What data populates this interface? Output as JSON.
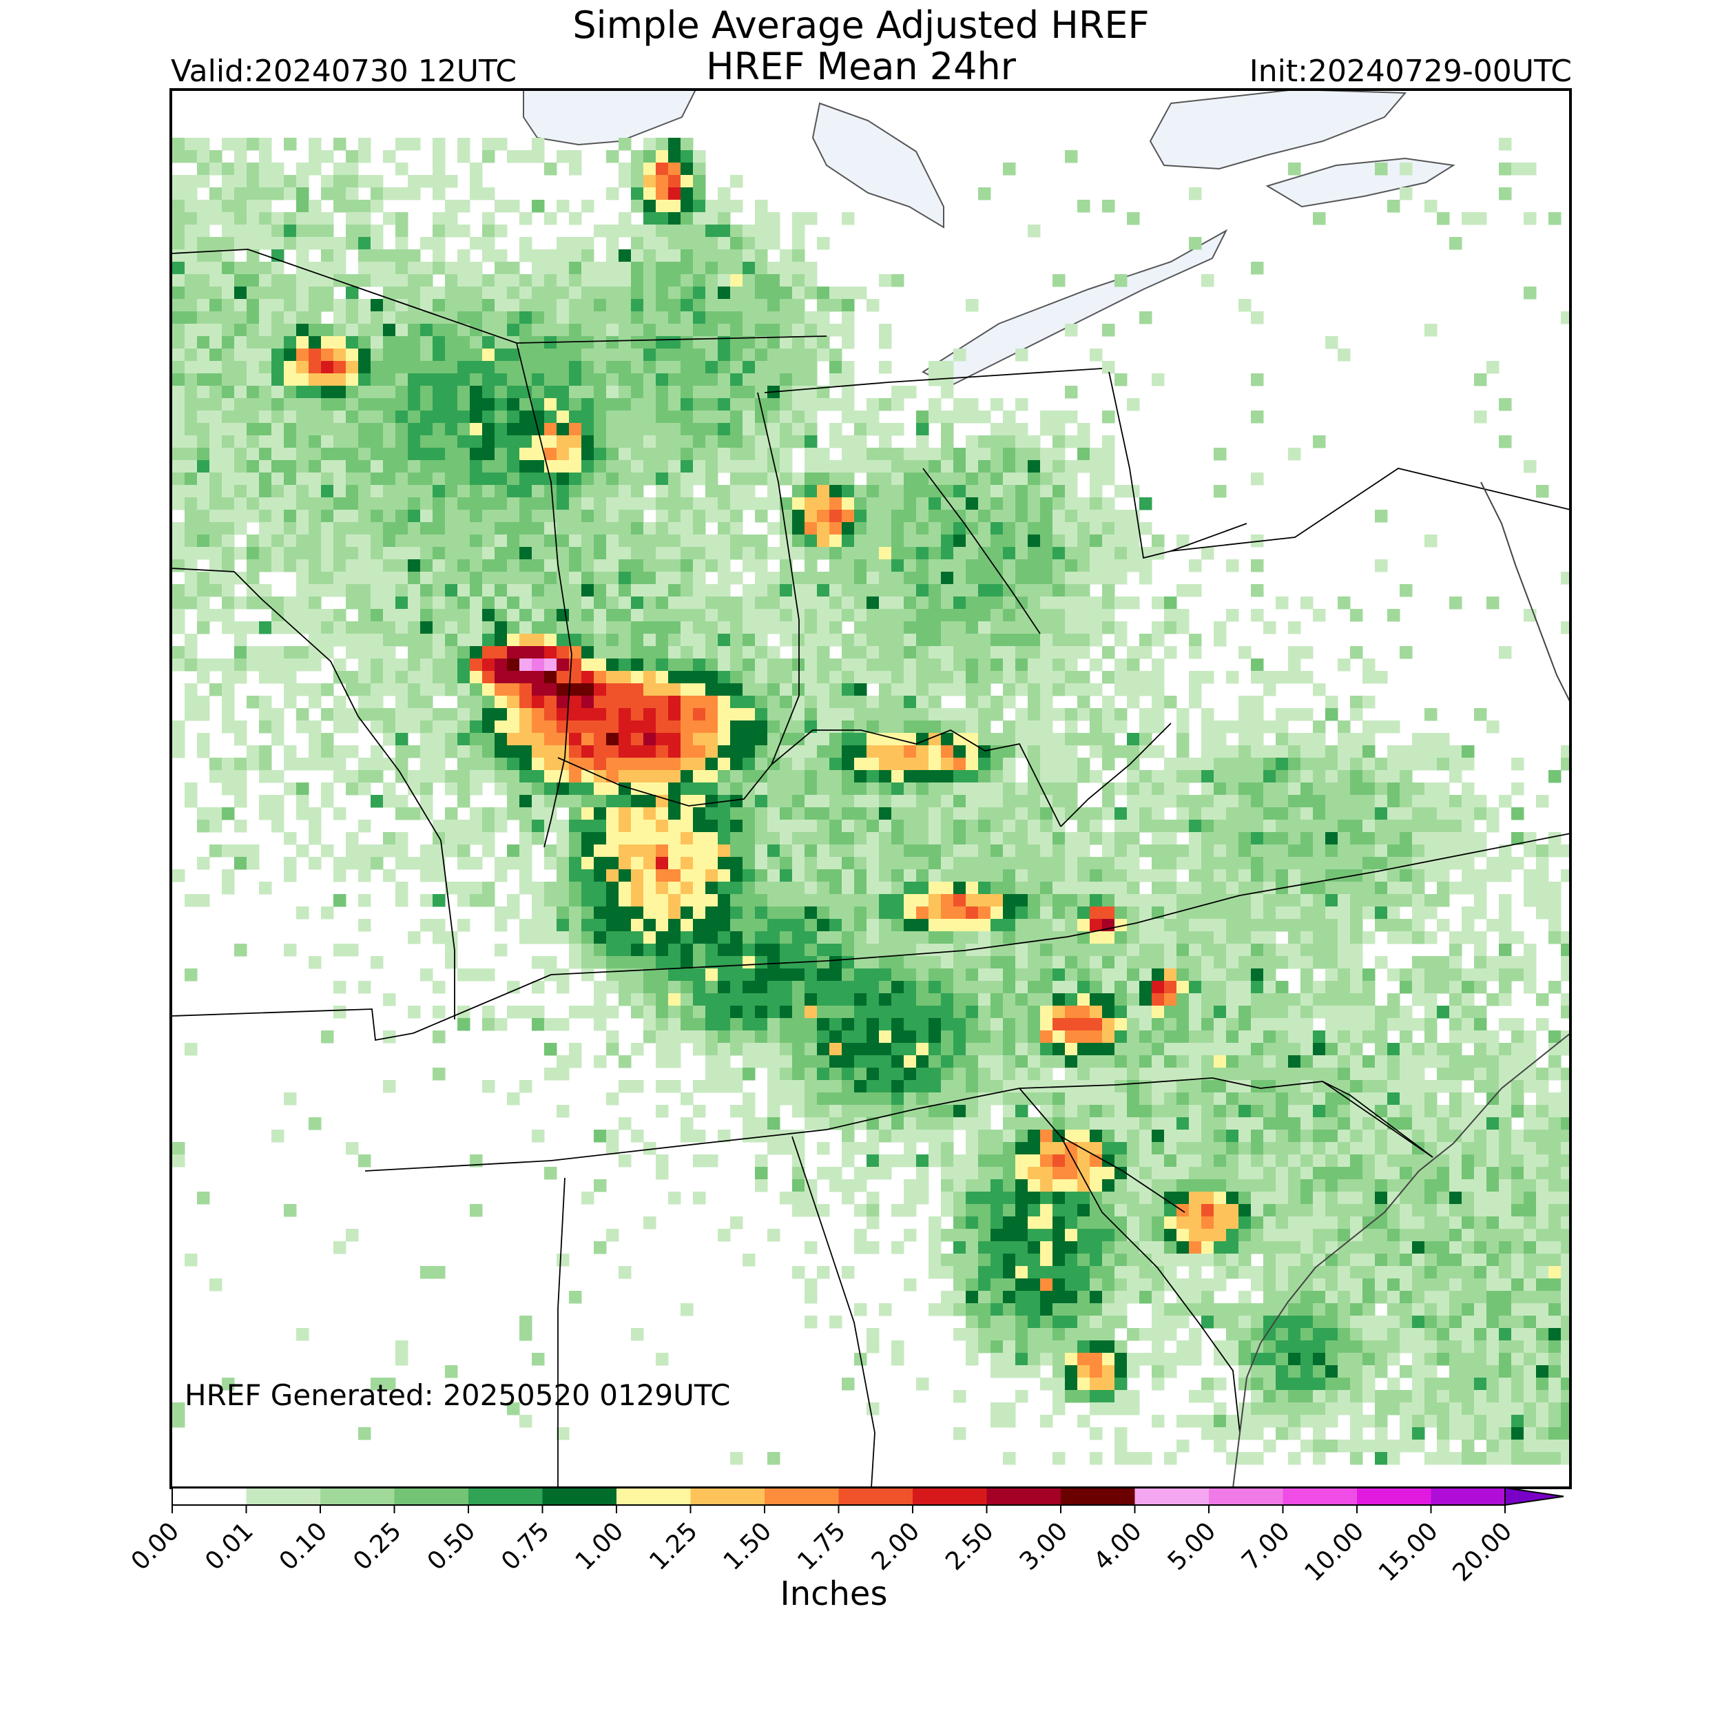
{
  "title": {
    "line1": "Simple Average Adjusted HREF",
    "line2": "HREF Mean 24hr",
    "valid": "Valid:20240730 12UTC",
    "init": "Init:20240729-00UTC"
  },
  "footer": {
    "generated": "HREF Generated: 20250520 0129UTC"
  },
  "colorbar": {
    "label": "Inches",
    "ticks": [
      "0.00",
      "0.01",
      "0.10",
      "0.25",
      "0.50",
      "0.75",
      "1.00",
      "1.25",
      "1.50",
      "1.75",
      "2.00",
      "2.50",
      "3.00",
      "4.00",
      "5.00",
      "7.00",
      "10.00",
      "15.00",
      "20.00"
    ],
    "colors": [
      "#ffffff",
      "#c7e9c0",
      "#a1d99b",
      "#74c476",
      "#31a354",
      "#006d2c",
      "#fff7a0",
      "#fdc35a",
      "#fd8d3c",
      "#f0532a",
      "#d7191c",
      "#a50026",
      "#6b0000",
      "#f4a6f0",
      "#f07ae8",
      "#f04ce6",
      "#e21ae0",
      "#b00dd8",
      "#7a00c8"
    ],
    "extend": "max"
  },
  "map": {
    "region": "Central and Eastern United States",
    "field": "24-hr mean precipitation",
    "lake_color": "#eef3fa",
    "outline_color": "#000000"
  }
}
